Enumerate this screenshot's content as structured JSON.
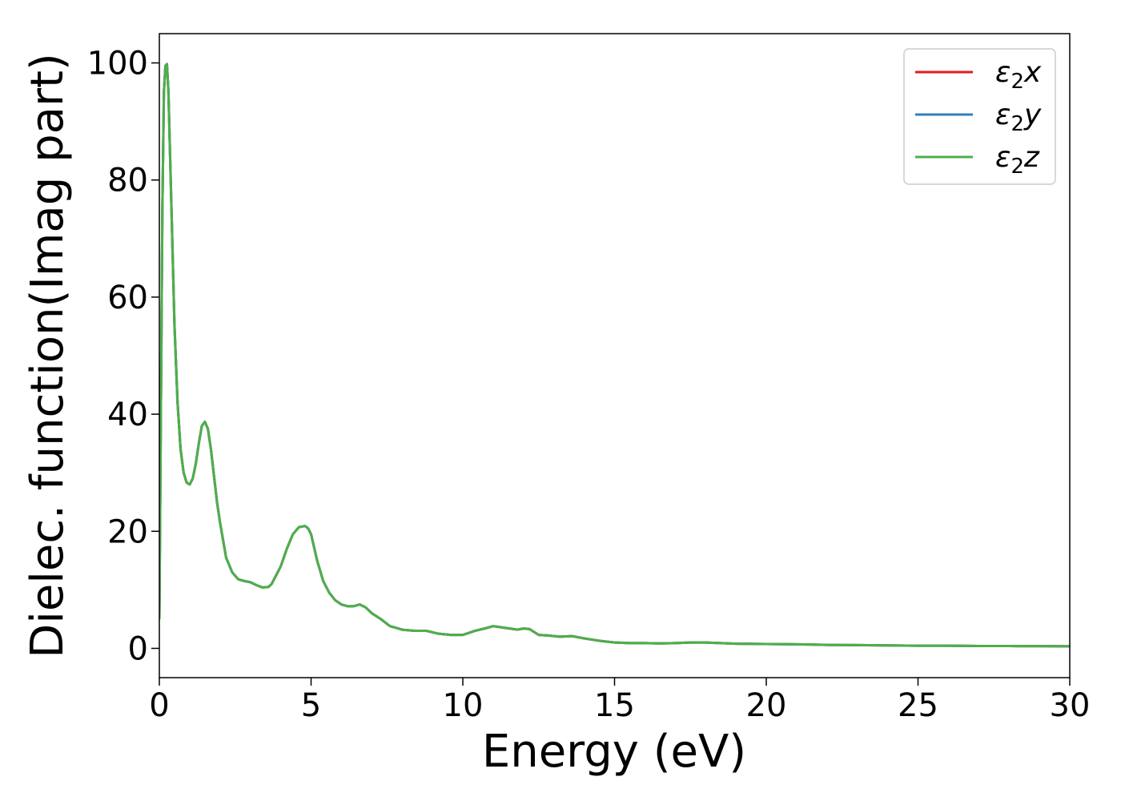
{
  "chart_data": {
    "type": "line",
    "title": "",
    "xlabel": "Energy (eV)",
    "ylabel": "Dielec. function(Imag part)",
    "xlim": [
      0,
      30
    ],
    "ylim": [
      -5,
      105
    ],
    "xticks": [
      0,
      5,
      10,
      15,
      20,
      25,
      30
    ],
    "yticks": [
      0,
      20,
      40,
      60,
      80,
      100
    ],
    "grid": false,
    "legend_position": "top-right",
    "x": [
      0.0,
      0.05,
      0.1,
      0.15,
      0.2,
      0.25,
      0.3,
      0.4,
      0.5,
      0.6,
      0.7,
      0.8,
      0.9,
      1.0,
      1.1,
      1.2,
      1.3,
      1.4,
      1.5,
      1.6,
      1.7,
      1.8,
      1.9,
      2.0,
      2.2,
      2.4,
      2.6,
      2.8,
      3.0,
      3.2,
      3.4,
      3.6,
      3.7,
      3.8,
      4.0,
      4.2,
      4.4,
      4.6,
      4.8,
      4.9,
      5.0,
      5.2,
      5.4,
      5.6,
      5.8,
      6.0,
      6.2,
      6.4,
      6.6,
      6.8,
      7.0,
      7.3,
      7.6,
      7.8,
      8.0,
      8.4,
      8.8,
      9.2,
      9.6,
      10.0,
      10.4,
      10.8,
      11.0,
      11.4,
      11.8,
      12.0,
      12.2,
      12.5,
      12.8,
      13.2,
      13.6,
      14.0,
      14.5,
      15.0,
      15.5,
      16.0,
      16.5,
      17.0,
      17.5,
      18.0,
      18.5,
      19.0,
      20.0,
      21.0,
      22.0,
      23.0,
      24.0,
      25.0,
      26.0,
      27.0,
      28.0,
      29.0,
      30.0
    ],
    "y": [
      5.0,
      40.0,
      75.0,
      95.0,
      99.5,
      99.8,
      95.0,
      75.0,
      55.0,
      42.0,
      34.0,
      30.0,
      28.3,
      28.0,
      29.0,
      31.5,
      35.0,
      38.0,
      38.7,
      37.5,
      34.0,
      29.5,
      25.0,
      21.5,
      15.5,
      13.0,
      11.8,
      11.5,
      11.3,
      10.8,
      10.4,
      10.5,
      11.0,
      12.0,
      14.0,
      17.0,
      19.5,
      20.7,
      20.9,
      20.5,
      19.5,
      15.0,
      11.5,
      9.5,
      8.2,
      7.5,
      7.2,
      7.2,
      7.5,
      7.0,
      6.0,
      5.0,
      3.8,
      3.5,
      3.2,
      3.0,
      3.0,
      2.5,
      2.3,
      2.3,
      3.0,
      3.5,
      3.8,
      3.5,
      3.2,
      3.4,
      3.3,
      2.3,
      2.2,
      2.0,
      2.1,
      1.7,
      1.3,
      1.0,
      0.9,
      0.9,
      0.85,
      0.9,
      1.0,
      1.0,
      0.9,
      0.8,
      0.75,
      0.7,
      0.6,
      0.55,
      0.5,
      0.45,
      0.45,
      0.4,
      0.4,
      0.38,
      0.35
    ],
    "series": [
      {
        "name": "ε₂x",
        "color": "#e41a1c",
        "symbol": "ε",
        "subscript": "2",
        "axis": "x"
      },
      {
        "name": "ε₂y",
        "color": "#377eb8",
        "symbol": "ε",
        "subscript": "2",
        "axis": "y"
      },
      {
        "name": "ε₂z",
        "color": "#4daf4a",
        "symbol": "ε",
        "subscript": "2",
        "axis": "z"
      }
    ]
  }
}
